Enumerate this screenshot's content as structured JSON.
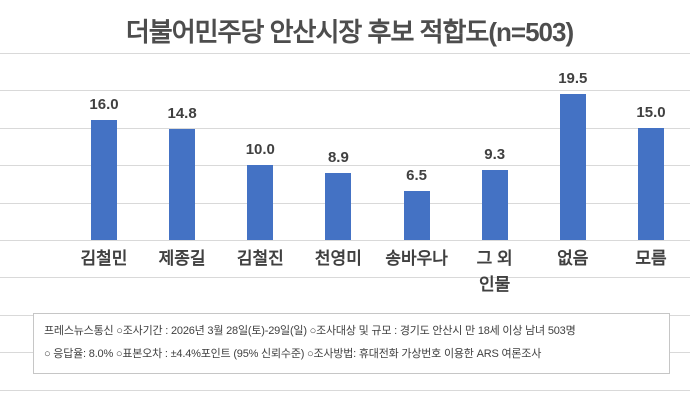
{
  "chart_data": {
    "type": "bar",
    "title": "더불어민주당 안산시장 후보 적합도(n=503)",
    "sample_size": "n=503",
    "categories": [
      "김철민",
      "제종길",
      "김철진",
      "천영미",
      "송바우나",
      "그 외\n인물",
      "없음",
      "모름"
    ],
    "values": [
      16.0,
      14.8,
      10.0,
      8.9,
      6.5,
      9.3,
      19.5,
      15.0
    ],
    "value_labels": [
      "16.0",
      "14.8",
      "10.0",
      "8.9",
      "6.5",
      "9.3",
      "19.5",
      "15.0"
    ],
    "xlabel": "",
    "ylabel": "",
    "ylim": [
      -20,
      25
    ],
    "gridline_interval": 5,
    "grid": "on",
    "legend": "none",
    "axis_tick_labels": "hidden",
    "bar_color": "#4472C4",
    "gridline_color": "#D9D9D9",
    "label_color": "#404040"
  },
  "footer": {
    "line1": "프레스뉴스통신 ○조사기간 : 2026년 3월 28일(토)-29일(일) ○조사대상 및 규모 : 경기도 안산시 만 18세 이상 남녀 503명",
    "line2": "○ 응답율: 8.0% ○표본오차 : ±4.4%포인트 (95% 신뢰수준) ○조사방법: 휴대전화 가상번호 이용한 ARS 여론조사"
  }
}
